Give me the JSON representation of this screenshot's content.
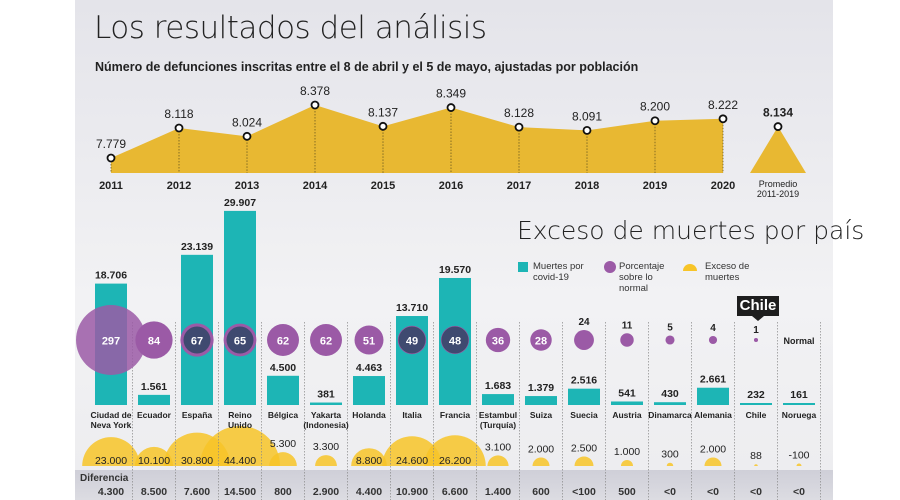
{
  "title": "Los resultados del análisis",
  "subtitle": "Número de defunciones inscritas entre el 8 de abril y el 5 de mayo, ajustadas por población",
  "title2": "Exceso de muertes por país",
  "legend": {
    "covid": "Muertes por covid-19",
    "pct": "Porcentaje sobre lo normal",
    "excess": "Exceso de muertes"
  },
  "chile_tag": "Chile",
  "normal_label": "Normal",
  "diff_label": "Diferencia",
  "colors": {
    "area": "#e8b832",
    "covid": "#1db5b5",
    "pct": "#9b5aa6",
    "pct_dark": "#3f4a70",
    "excess": "#f7c428",
    "band": "#d4d4dc"
  },
  "chart_data": [
    {
      "type": "area",
      "categories": [
        "2011",
        "2012",
        "2013",
        "2014",
        "2015",
        "2016",
        "2017",
        "2018",
        "2019",
        "2020"
      ],
      "values": [
        7779,
        8118,
        8024,
        8378,
        8137,
        8349,
        8128,
        8091,
        8200,
        8222
      ],
      "value_labels": [
        "7.779",
        "8.118",
        "8.024",
        "8.378",
        "8.137",
        "8.349",
        "8.128",
        "8.091",
        "8.200",
        "8.222"
      ],
      "average": {
        "label": "Promedio 2011-2019",
        "value": 8134,
        "value_label": "8.134"
      }
    },
    {
      "type": "bar",
      "categories": [
        "Ciudad de Neva York",
        "Ecuador",
        "España",
        "Reino Unido",
        "Bélgica",
        "Yakarta (Indonesia)",
        "Holanda",
        "Italia",
        "Francia",
        "Estambul (Turquía)",
        "Suiza",
        "Suecia",
        "Austria",
        "Dinamarca",
        "Alemania",
        "Chile",
        "Noruega"
      ],
      "series": [
        {
          "name": "Muertes por covid-19",
          "values": [
            18706,
            1561,
            23139,
            29907,
            4500,
            381,
            4463,
            13710,
            19570,
            1683,
            1379,
            2516,
            541,
            430,
            2661,
            232,
            161
          ],
          "labels": [
            "18.706",
            "1.561",
            "23.139",
            "29.907",
            "4.500",
            "381",
            "4.463",
            "13.710",
            "19.570",
            "1.683",
            "1.379",
            "2.516",
            "541",
            "430",
            "2.661",
            "232",
            "161"
          ]
        },
        {
          "name": "Porcentaje sobre lo normal",
          "values": [
            297,
            84,
            67,
            65,
            62,
            62,
            51,
            49,
            48,
            36,
            28,
            24,
            11,
            5,
            4,
            1,
            null
          ]
        },
        {
          "name": "Exceso de muertes",
          "values": [
            23000,
            10100,
            30800,
            44400,
            5300,
            3300,
            8800,
            24600,
            26200,
            3100,
            2000,
            2500,
            1000,
            300,
            2000,
            88,
            -100
          ],
          "labels": [
            "23.000",
            "10.100",
            "30.800",
            "44.400",
            "5.300",
            "3.300",
            "8.800",
            "24.600",
            "26.200",
            "3.100",
            "2.000",
            "2.500",
            "1.000",
            "300",
            "2.000",
            "88",
            "-100"
          ]
        }
      ],
      "difference": [
        "4.300",
        "8.500",
        "7.600",
        "14.500",
        "800",
        "2.900",
        "4.400",
        "10.900",
        "6.600",
        "1.400",
        "600",
        "<100",
        "500",
        "<0",
        "<0",
        "<0",
        "<0"
      ]
    }
  ]
}
